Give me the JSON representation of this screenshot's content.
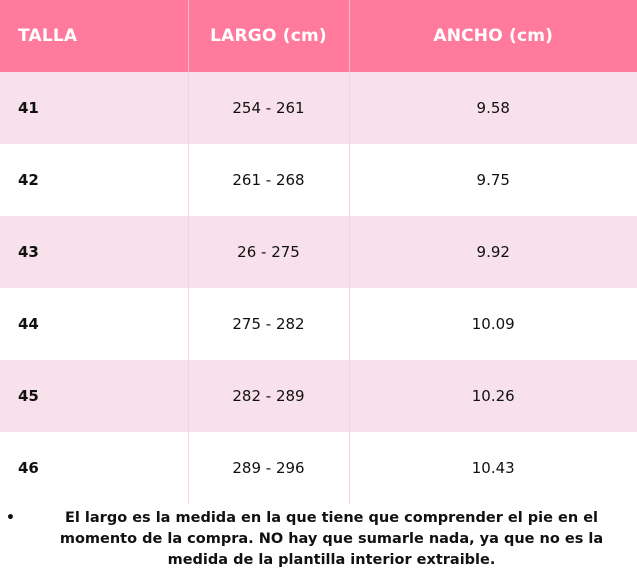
{
  "table": {
    "headers": [
      "TALLA",
      "LARGO (cm)",
      "ANCHO (cm)"
    ],
    "rows": [
      {
        "talla": "41",
        "largo": "254 - 261",
        "ancho": "9.58"
      },
      {
        "talla": "42",
        "largo": "261 - 268",
        "ancho": "9.75"
      },
      {
        "talla": "43",
        "largo": "26 - 275",
        "ancho": "9.92"
      },
      {
        "talla": "44",
        "largo": "275 - 282",
        "ancho": "10.09"
      },
      {
        "talla": "45",
        "largo": "282 - 289",
        "ancho": "10.26"
      },
      {
        "talla": "46",
        "largo": "289 - 296",
        "ancho": "10.43"
      }
    ]
  },
  "note": {
    "bullet": "•",
    "text": "El largo es la medida en la que tiene que comprender el pie en el momento de la compra. NO hay que sumarle nada, ya que no es la medida de la plantilla interior extraible."
  },
  "colors": {
    "header_bg": "#ff7a9c",
    "header_text": "#ffffff",
    "stripe_row_bg": "#f9e1ec",
    "plain_row_bg": "#ffffff"
  }
}
